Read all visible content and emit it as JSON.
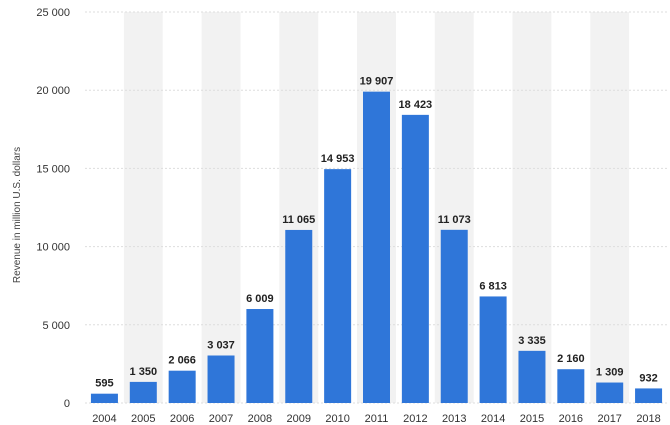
{
  "chart_data": {
    "type": "bar",
    "title": "",
    "ylabel": "Revenue in million U.S. dollars",
    "xlabel": "",
    "categories": [
      "2004",
      "2005",
      "2006",
      "2007",
      "2008",
      "2009",
      "2010",
      "2011",
      "2012",
      "2013",
      "2014",
      "2015",
      "2016",
      "2017",
      "2018"
    ],
    "values": [
      595,
      1350,
      2066,
      3037,
      6009,
      11065,
      14953,
      19907,
      18423,
      11073,
      6813,
      3335,
      2160,
      1309,
      932
    ],
    "value_labels": [
      "595",
      "1 350",
      "2 066",
      "3 037",
      "6 009",
      "11 065",
      "14 953",
      "19 907",
      "18 423",
      "11 073",
      "6 813",
      "3 335",
      "2 160",
      "1 309",
      "932"
    ],
    "ylim": [
      0,
      25000
    ],
    "yticks": [
      0,
      5000,
      10000,
      15000,
      20000,
      25000
    ],
    "ytick_labels": [
      "0",
      "5 000",
      "10 000",
      "15 000",
      "20 000",
      "25 000"
    ],
    "grid": true,
    "bar_color": "#2f76d9",
    "band_color": "#f2f2f2",
    "grid_color": "#dddddd"
  }
}
